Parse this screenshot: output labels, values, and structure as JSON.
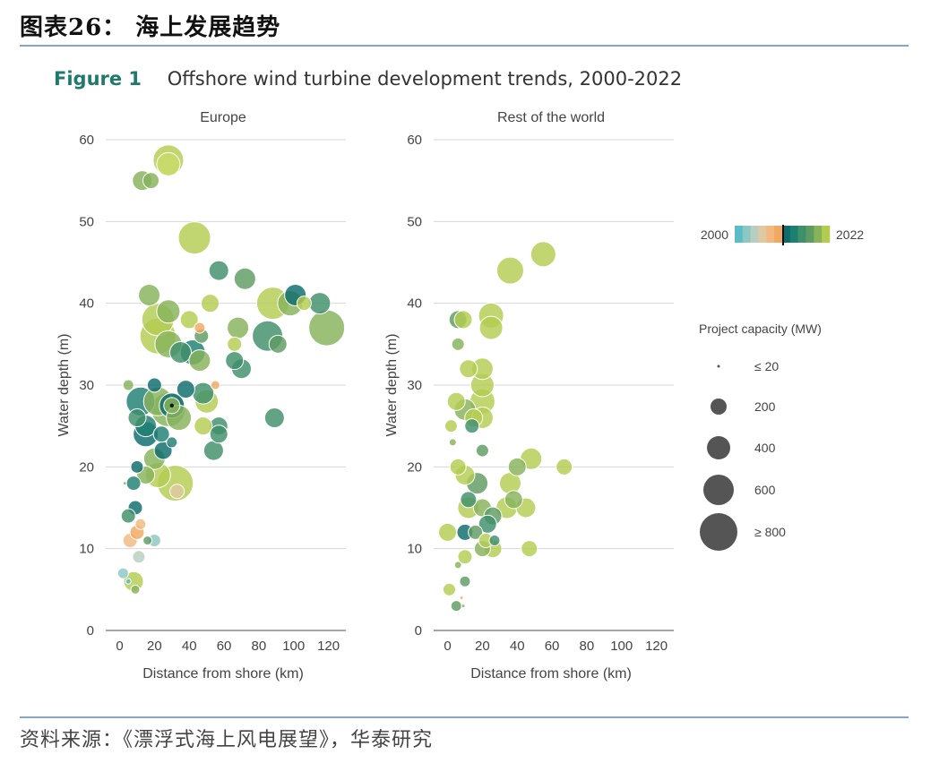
{
  "header": {
    "title": "图表26：  海上发展趋势"
  },
  "figure": {
    "label": "Figure 1",
    "title": "Offshore wind turbine development trends, 2000-2022"
  },
  "source": {
    "text": "资料来源：《漂浮式海上风电展望》，华泰研究"
  },
  "colors": {
    "gradient": [
      "#5bbcc7",
      "#8cc7c4",
      "#b6cfc0",
      "#e0c9a0",
      "#f2b880",
      "#f2a860",
      "#0e6b6b",
      "#1d7f72",
      "#3f8f6a",
      "#5e9b62",
      "#86b25a",
      "#b3cc50"
    ],
    "marker": "#111111",
    "grid": "#d7d7d7",
    "legend_bubble": "#555555"
  },
  "chart_data": [
    {
      "type": "scatter",
      "title": "Europe",
      "xlabel": "Distance from shore (km)",
      "ylabel": "Water depth (m)",
      "xlim": [
        -8,
        130
      ],
      "ylim": [
        0,
        60
      ],
      "xticks": [
        0,
        20,
        40,
        60,
        80,
        100,
        120
      ],
      "yticks": [
        0,
        10,
        20,
        30,
        40,
        50,
        60
      ],
      "points": [
        {
          "x": 28,
          "y": 57.5,
          "r": 17,
          "c": "#b3cc50"
        },
        {
          "x": 28,
          "y": 57,
          "r": 13,
          "c": "#c9da6a"
        },
        {
          "x": 13,
          "y": 55,
          "r": 11,
          "c": "#86b25a"
        },
        {
          "x": 18,
          "y": 55,
          "r": 9,
          "c": "#86b25a"
        },
        {
          "x": 43,
          "y": 48,
          "r": 18,
          "c": "#b3cc50"
        },
        {
          "x": 57,
          "y": 44,
          "r": 11,
          "c": "#3f8f6a"
        },
        {
          "x": 72,
          "y": 43,
          "r": 12,
          "c": "#5e9b62"
        },
        {
          "x": 17,
          "y": 41,
          "r": 12,
          "c": "#86b25a"
        },
        {
          "x": 101,
          "y": 41,
          "r": 12,
          "c": "#0e6b6b"
        },
        {
          "x": 98,
          "y": 40,
          "r": 14,
          "c": "#86b25a"
        },
        {
          "x": 88,
          "y": 40,
          "r": 18,
          "c": "#b3cc50"
        },
        {
          "x": 52,
          "y": 40,
          "r": 10,
          "c": "#b3cc50"
        },
        {
          "x": 115,
          "y": 40,
          "r": 12,
          "c": "#3f8f6a"
        },
        {
          "x": 106,
          "y": 40,
          "r": 8,
          "c": "#b3cc50"
        },
        {
          "x": 28,
          "y": 39,
          "r": 13,
          "c": "#86b25a"
        },
        {
          "x": 40,
          "y": 38,
          "r": 10,
          "c": "#b3cc50"
        },
        {
          "x": 22,
          "y": 38,
          "r": 18,
          "c": "#b3cc50"
        },
        {
          "x": 46,
          "y": 37,
          "r": 6,
          "c": "#f2a860"
        },
        {
          "x": 68,
          "y": 37,
          "r": 12,
          "c": "#86b25a"
        },
        {
          "x": 119,
          "y": 37,
          "r": 20,
          "c": "#86b25a"
        },
        {
          "x": 22,
          "y": 36,
          "r": 20,
          "c": "#b3cc50"
        },
        {
          "x": 85,
          "y": 36,
          "r": 17,
          "c": "#3f8f6a"
        },
        {
          "x": 47,
          "y": 36,
          "r": 8,
          "c": "#5e9b62"
        },
        {
          "x": 28,
          "y": 35,
          "r": 15,
          "c": "#86b25a"
        },
        {
          "x": 66,
          "y": 35,
          "r": 8,
          "c": "#b3cc50"
        },
        {
          "x": 91,
          "y": 35,
          "r": 10,
          "c": "#5e9b62"
        },
        {
          "x": 35,
          "y": 34,
          "r": 12,
          "c": "#3f8f6a"
        },
        {
          "x": 42,
          "y": 34,
          "r": 14,
          "c": "#1d7f72"
        },
        {
          "x": 46,
          "y": 33,
          "r": 12,
          "c": "#86b25a"
        },
        {
          "x": 66,
          "y": 33,
          "r": 10,
          "c": "#3f8f6a"
        },
        {
          "x": 70,
          "y": 32,
          "r": 11,
          "c": "#3f8f6a"
        },
        {
          "x": 5,
          "y": 30,
          "r": 6,
          "c": "#86b25a"
        },
        {
          "x": 20,
          "y": 30,
          "r": 8,
          "c": "#0e6b6b"
        },
        {
          "x": 38,
          "y": 29.5,
          "r": 10,
          "c": "#0e6b6b"
        },
        {
          "x": 55,
          "y": 30,
          "r": 5,
          "c": "#f2a860"
        },
        {
          "x": 48,
          "y": 29,
          "r": 12,
          "c": "#3f8f6a"
        },
        {
          "x": 12,
          "y": 28,
          "r": 16,
          "c": "#1d7f72"
        },
        {
          "x": 22,
          "y": 28,
          "r": 16,
          "c": "#86b25a"
        },
        {
          "x": 30,
          "y": 27.5,
          "r": 14,
          "c": "#0e6b6b"
        },
        {
          "x": 30,
          "y": 27.5,
          "r": 9,
          "c": "#86b25a"
        },
        {
          "x": 50,
          "y": 28,
          "r": 13,
          "c": "#b3cc50"
        },
        {
          "x": 28,
          "y": 27,
          "r": 19,
          "c": "#86b25a"
        },
        {
          "x": 10,
          "y": 26,
          "r": 10,
          "c": "#3f8f6a"
        },
        {
          "x": 34,
          "y": 26,
          "r": 14,
          "c": "#86b25a"
        },
        {
          "x": 89,
          "y": 26,
          "r": 11,
          "c": "#3f8f6a"
        },
        {
          "x": 15,
          "y": 25,
          "r": 12,
          "c": "#1d7f72"
        },
        {
          "x": 57,
          "y": 25,
          "r": 10,
          "c": "#3f8f6a"
        },
        {
          "x": 48,
          "y": 25,
          "r": 10,
          "c": "#b3cc50"
        },
        {
          "x": 15,
          "y": 24,
          "r": 14,
          "c": "#0e6b6b"
        },
        {
          "x": 24,
          "y": 24,
          "r": 9,
          "c": "#1d7f72"
        },
        {
          "x": 57,
          "y": 24,
          "r": 10,
          "c": "#3f8f6a"
        },
        {
          "x": 30,
          "y": 23,
          "r": 6,
          "c": "#1d7f72"
        },
        {
          "x": 25,
          "y": 22,
          "r": 10,
          "c": "#0e6b6b"
        },
        {
          "x": 54,
          "y": 22,
          "r": 11,
          "c": "#3f8f6a"
        },
        {
          "x": 20,
          "y": 21,
          "r": 12,
          "c": "#86b25a"
        },
        {
          "x": 10,
          "y": 20,
          "r": 7,
          "c": "#0e6b6b"
        },
        {
          "x": 22,
          "y": 19,
          "r": 14,
          "c": "#b3cc50"
        },
        {
          "x": 15,
          "y": 19,
          "r": 10,
          "c": "#86b25a"
        },
        {
          "x": 32,
          "y": 18,
          "r": 20,
          "c": "#b3cc50"
        },
        {
          "x": 8,
          "y": 18,
          "r": 8,
          "c": "#1d7f72"
        },
        {
          "x": 33,
          "y": 17,
          "r": 8,
          "c": "#e0c9a0"
        },
        {
          "x": 3,
          "y": 18,
          "r": 2,
          "c": "#86b25a"
        },
        {
          "x": 9,
          "y": 15,
          "r": 8,
          "c": "#0e6b6b"
        },
        {
          "x": 5,
          "y": 14,
          "r": 8,
          "c": "#3f8f6a"
        },
        {
          "x": 12,
          "y": 13,
          "r": 6,
          "c": "#f2b880"
        },
        {
          "x": 6,
          "y": 11,
          "r": 8,
          "c": "#f2b880"
        },
        {
          "x": 10,
          "y": 12,
          "r": 8,
          "c": "#f2a860"
        },
        {
          "x": 20,
          "y": 11,
          "r": 7,
          "c": "#8cc7c4"
        },
        {
          "x": 16,
          "y": 11,
          "r": 5,
          "c": "#5e9b62"
        },
        {
          "x": 11,
          "y": 9,
          "r": 7,
          "c": "#b6cfc0"
        },
        {
          "x": 2,
          "y": 7,
          "r": 6,
          "c": "#8cc7c4"
        },
        {
          "x": 8,
          "y": 6,
          "r": 11,
          "c": "#b3cc50"
        },
        {
          "x": 5,
          "y": 6,
          "r": 3,
          "c": "#5bbcc7"
        },
        {
          "x": 9,
          "y": 5,
          "r": 5,
          "c": "#86b25a"
        }
      ],
      "markers": [
        {
          "x": 30,
          "y": 27.5
        }
      ]
    },
    {
      "type": "scatter",
      "title": "Rest of the world",
      "xlabel": "Distance from shore (km)",
      "ylabel": "Water depth (m)",
      "xlim": [
        -8,
        130
      ],
      "ylim": [
        0,
        60
      ],
      "xticks": [
        0,
        20,
        40,
        60,
        80,
        100,
        120
      ],
      "yticks": [
        0,
        10,
        20,
        30,
        40,
        50,
        60
      ],
      "points": [
        {
          "x": 36,
          "y": 44,
          "r": 15,
          "c": "#b3cc50"
        },
        {
          "x": 55,
          "y": 46,
          "r": 14,
          "c": "#b3cc50"
        },
        {
          "x": 6,
          "y": 38,
          "r": 10,
          "c": "#5e9b62"
        },
        {
          "x": 9,
          "y": 38,
          "r": 10,
          "c": "#b3cc50"
        },
        {
          "x": 25,
          "y": 38.5,
          "r": 14,
          "c": "#b3cc50"
        },
        {
          "x": 25,
          "y": 37,
          "r": 13,
          "c": "#b3cc50"
        },
        {
          "x": 6,
          "y": 35,
          "r": 7,
          "c": "#86b25a"
        },
        {
          "x": 12,
          "y": 32,
          "r": 10,
          "c": "#b3cc50"
        },
        {
          "x": 20,
          "y": 32,
          "r": 12,
          "c": "#b3cc50"
        },
        {
          "x": 20,
          "y": 30,
          "r": 13,
          "c": "#b3cc50"
        },
        {
          "x": 5,
          "y": 28,
          "r": 10,
          "c": "#b3cc50"
        },
        {
          "x": 20,
          "y": 28,
          "r": 14,
          "c": "#b3cc50"
        },
        {
          "x": 10,
          "y": 27,
          "r": 12,
          "c": "#86b25a"
        },
        {
          "x": 15,
          "y": 26,
          "r": 10,
          "c": "#b3cc50"
        },
        {
          "x": 20,
          "y": 26,
          "r": 12,
          "c": "#b3cc50"
        },
        {
          "x": 2,
          "y": 25,
          "r": 7,
          "c": "#b3cc50"
        },
        {
          "x": 14,
          "y": 25,
          "r": 8,
          "c": "#3f8f6a"
        },
        {
          "x": 3,
          "y": 23,
          "r": 4,
          "c": "#86b25a"
        },
        {
          "x": 20,
          "y": 22,
          "r": 7,
          "c": "#5e9b62"
        },
        {
          "x": 6,
          "y": 20,
          "r": 9,
          "c": "#b3cc50"
        },
        {
          "x": 10,
          "y": 19,
          "r": 11,
          "c": "#b3cc50"
        },
        {
          "x": 40,
          "y": 20,
          "r": 10,
          "c": "#86b25a"
        },
        {
          "x": 48,
          "y": 21,
          "r": 12,
          "c": "#b3cc50"
        },
        {
          "x": 67,
          "y": 20,
          "r": 9,
          "c": "#b3cc50"
        },
        {
          "x": 17,
          "y": 18,
          "r": 12,
          "c": "#5e9b62"
        },
        {
          "x": 36,
          "y": 18,
          "r": 12,
          "c": "#b3cc50"
        },
        {
          "x": 38,
          "y": 16,
          "r": 10,
          "c": "#86b25a"
        },
        {
          "x": 12,
          "y": 16,
          "r": 9,
          "c": "#3f8f6a"
        },
        {
          "x": 20,
          "y": 15,
          "r": 10,
          "c": "#86b25a"
        },
        {
          "x": 12,
          "y": 15,
          "r": 12,
          "c": "#b3cc50"
        },
        {
          "x": 34,
          "y": 15,
          "r": 12,
          "c": "#b3cc50"
        },
        {
          "x": 45,
          "y": 15,
          "r": 11,
          "c": "#b3cc50"
        },
        {
          "x": 26,
          "y": 14,
          "r": 10,
          "c": "#5e9b62"
        },
        {
          "x": 23,
          "y": 13,
          "r": 10,
          "c": "#3f8f6a"
        },
        {
          "x": 0,
          "y": 12,
          "r": 10,
          "c": "#b3cc50"
        },
        {
          "x": 10,
          "y": 12,
          "r": 9,
          "c": "#0e6b6b"
        },
        {
          "x": 16,
          "y": 12,
          "r": 8,
          "c": "#5e9b62"
        },
        {
          "x": 22,
          "y": 11,
          "r": 8,
          "c": "#b3cc50"
        },
        {
          "x": 27,
          "y": 11,
          "r": 6,
          "c": "#3f8f6a"
        },
        {
          "x": 20,
          "y": 10,
          "r": 9,
          "c": "#86b25a"
        },
        {
          "x": 26,
          "y": 10,
          "r": 10,
          "c": "#b3cc50"
        },
        {
          "x": 47,
          "y": 10,
          "r": 9,
          "c": "#b3cc50"
        },
        {
          "x": 10,
          "y": 9,
          "r": 8,
          "c": "#b3cc50"
        },
        {
          "x": 6,
          "y": 8,
          "r": 4,
          "c": "#86b25a"
        },
        {
          "x": 10,
          "y": 6,
          "r": 6,
          "c": "#5e9b62"
        },
        {
          "x": 1,
          "y": 5,
          "r": 7,
          "c": "#b3cc50"
        },
        {
          "x": 8,
          "y": 4,
          "r": 2,
          "c": "#f2a860"
        },
        {
          "x": 5,
          "y": 3,
          "r": 6,
          "c": "#5e9b62"
        },
        {
          "x": 9,
          "y": 3,
          "r": 2,
          "c": "#86b25a"
        }
      ],
      "markers": []
    }
  ],
  "legend": {
    "year_start": "2000",
    "year_end": "2022",
    "capacity_title": "Project capacity (MW)",
    "capacity": [
      {
        "label": "≤ 20",
        "r": 1.5
      },
      {
        "label": "200",
        "r": 9
      },
      {
        "label": "400",
        "r": 13
      },
      {
        "label": "600",
        "r": 17
      },
      {
        "label": "≥ 800",
        "r": 21
      }
    ]
  }
}
